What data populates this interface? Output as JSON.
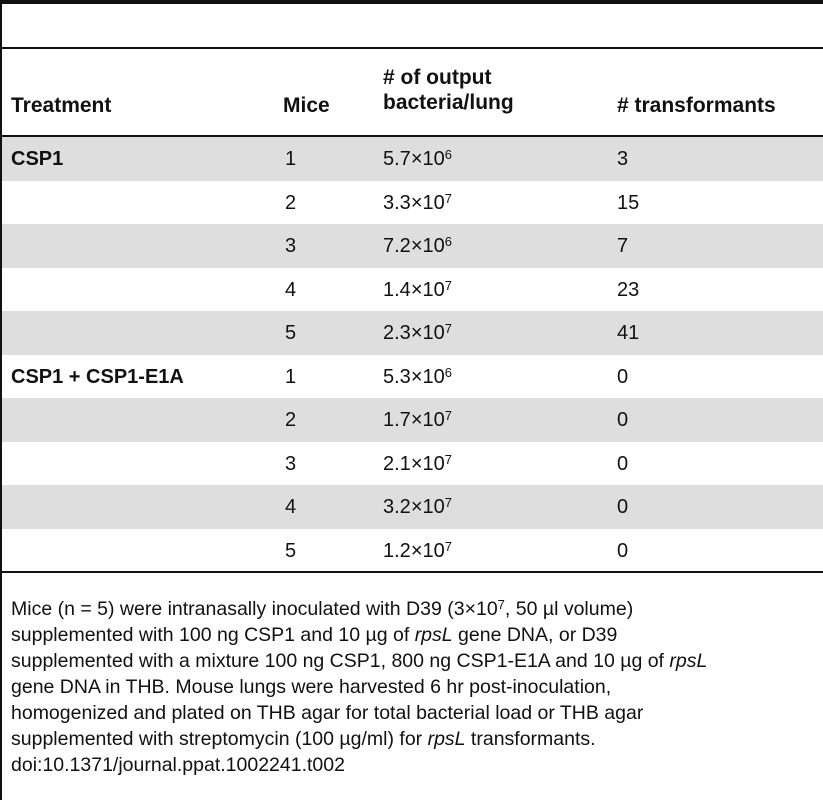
{
  "table": {
    "headers": {
      "treatment": "Treatment",
      "mice": "Mice",
      "output_line1": "# of output",
      "output_line2": "bacteria/lung",
      "transformants": "# transformants"
    },
    "rows": [
      {
        "treatment": "CSP1",
        "mice": "1",
        "output_base": "5.7",
        "output_exp": "6",
        "transformants": "3"
      },
      {
        "treatment": "",
        "mice": "2",
        "output_base": "3.3",
        "output_exp": "7",
        "transformants": "15"
      },
      {
        "treatment": "",
        "mice": "3",
        "output_base": "7.2",
        "output_exp": "6",
        "transformants": "7"
      },
      {
        "treatment": "",
        "mice": "4",
        "output_base": "1.4",
        "output_exp": "7",
        "transformants": "23"
      },
      {
        "treatment": "",
        "mice": "5",
        "output_base": "2.3",
        "output_exp": "7",
        "transformants": "41"
      },
      {
        "treatment": "CSP1 + CSP1-E1A",
        "mice": "1",
        "output_base": "5.3",
        "output_exp": "6",
        "transformants": "0"
      },
      {
        "treatment": "",
        "mice": "2",
        "output_base": "1.7",
        "output_exp": "7",
        "transformants": "0"
      },
      {
        "treatment": "",
        "mice": "3",
        "output_base": "2.1",
        "output_exp": "7",
        "transformants": "0"
      },
      {
        "treatment": "",
        "mice": "4",
        "output_base": "3.2",
        "output_exp": "7",
        "transformants": "0"
      },
      {
        "treatment": "",
        "mice": "5",
        "output_base": "1.2",
        "output_exp": "7",
        "transformants": "0"
      }
    ],
    "sci_times": "×10"
  },
  "footnote": {
    "l1a": "Mice (n = 5) were intranasally inoculated with D39 (3",
    "l1_exp": "7",
    "l1b": ", 50 µl volume)",
    "l2a": "supplemented with 100 ng CSP1 and 10 µg of ",
    "l2_gene": "rpsL",
    "l2b": " gene DNA, or D39",
    "l3a": "supplemented with a mixture 100 ng CSP1, 800 ng CSP1-E1A and 10 µg of ",
    "l3_gene": "rpsL",
    "l4": "gene DNA in THB. Mouse lungs were harvested 6 hr post-inoculation,",
    "l5": "homogenized and plated on THB agar for total bacterial load or THB agar",
    "l6a": "supplemented with streptomycin (100 µg/ml) for ",
    "l6_gene": "rpsL",
    "l6b": " transformants.",
    "doi": "doi:10.1371/journal.ppat.1002241.t002"
  }
}
